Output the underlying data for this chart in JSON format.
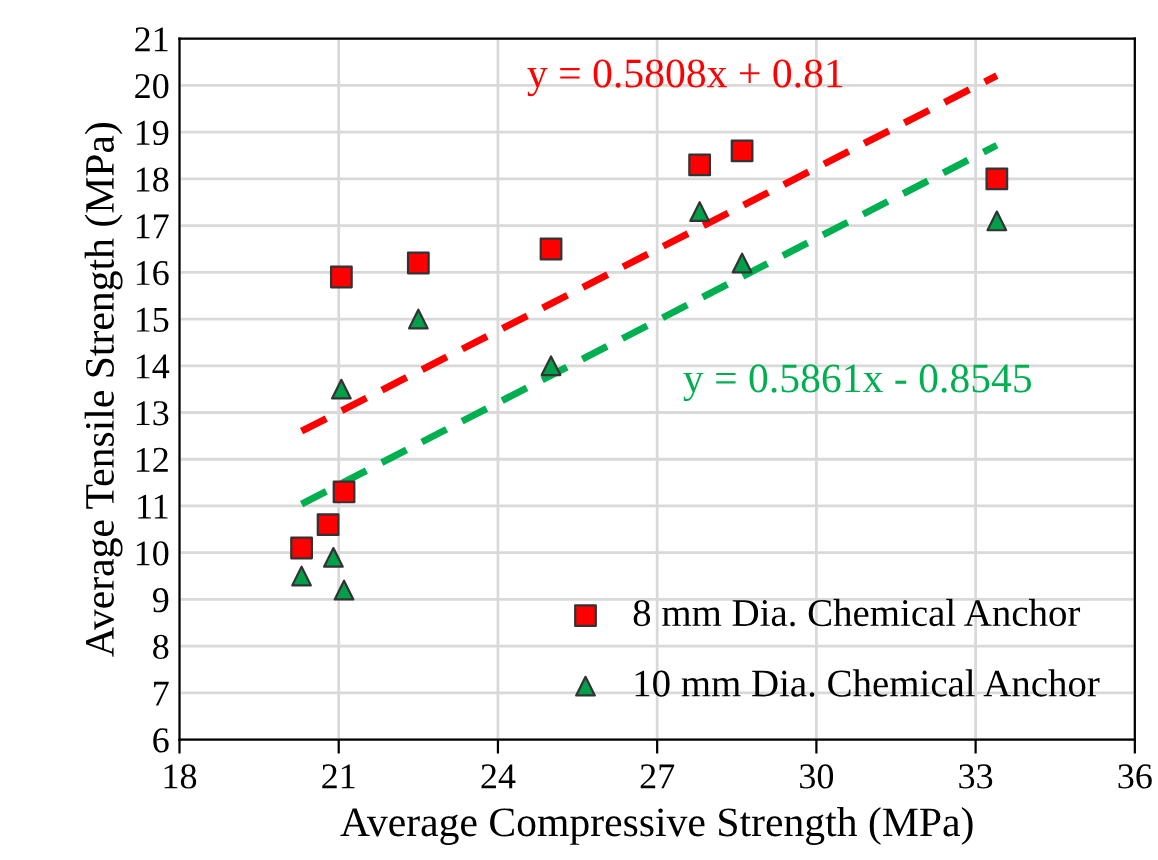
{
  "chart_data": {
    "type": "scatter",
    "xlabel": "Average Compressive Strength (MPa)",
    "ylabel": "Average Tensile Strength (MPa)",
    "xlim": [
      18,
      36
    ],
    "xticks": [
      18,
      21,
      24,
      27,
      30,
      33,
      36
    ],
    "ylim": [
      6,
      21
    ],
    "yticks": [
      6,
      7,
      8,
      9,
      10,
      11,
      12,
      13,
      14,
      15,
      16,
      17,
      18,
      19,
      20,
      21
    ],
    "grid": true,
    "legend": "bottom right",
    "series": [
      {
        "name": "8 mm Dia. Chemical Anchor",
        "marker": "square",
        "color": "#ff0000",
        "x": [
          20.3,
          20.8,
          21.1,
          21.05,
          22.5,
          25.0,
          27.8,
          28.6,
          33.4
        ],
        "values": [
          10.1,
          10.6,
          11.3,
          15.9,
          16.2,
          16.5,
          18.3,
          18.6,
          18.0
        ]
      },
      {
        "name": "10 mm Dia. Chemical Anchor",
        "marker": "triangle",
        "color": "#00a04a",
        "x": [
          20.3,
          20.9,
          21.1,
          21.05,
          22.5,
          25.0,
          27.8,
          28.6,
          33.4
        ],
        "values": [
          9.5,
          9.9,
          9.2,
          13.5,
          15.0,
          14.0,
          17.3,
          16.2,
          17.1
        ]
      },
      {
        "type": "line",
        "line_style": "dashed",
        "color": "#ff0000",
        "x": [
          20.3,
          33.4
        ],
        "values": [
          12.6,
          20.21
        ]
      },
      {
        "type": "line",
        "line_style": "dashed",
        "color": "#00b050",
        "x": [
          20.3,
          33.4
        ],
        "values": [
          11.04,
          18.72
        ]
      }
    ],
    "annotations": [
      "y = 0.5808x + 0.81",
      "y = 0.5861x - 0.8545"
    ]
  }
}
